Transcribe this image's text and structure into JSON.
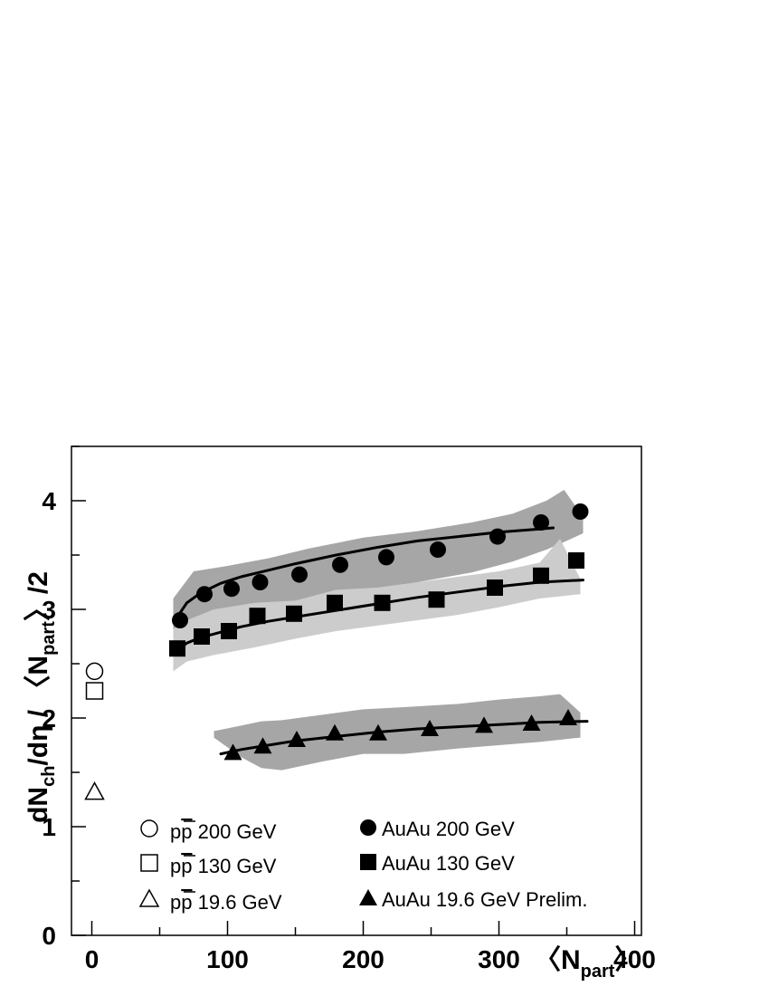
{
  "chart_data": {
    "type": "scatter",
    "ylabel": {
      "main": "dN",
      "sub1": "ch",
      "mid": "/dη / 〈N",
      "sub2": "part",
      "end": "〉/2"
    },
    "xlabel": {
      "pre": "〈N",
      "sub": "part",
      "post": "〉"
    },
    "xlim": [
      -15,
      405
    ],
    "ylim": [
      0,
      4.5
    ],
    "x_ticks": [
      {
        "v": 0,
        "label": "0"
      },
      {
        "v": 100,
        "label": "100"
      },
      {
        "v": 200,
        "label": "200"
      },
      {
        "v": 300,
        "label": "300"
      },
      {
        "v": 400,
        "label": "400"
      }
    ],
    "y_ticks": [
      {
        "v": 0,
        "label": "0"
      },
      {
        "v": 1,
        "label": "1"
      },
      {
        "v": 2,
        "label": "2"
      },
      {
        "v": 3,
        "label": "3"
      },
      {
        "v": 4,
        "label": "4"
      }
    ],
    "series": [
      {
        "name": "AuAu 200 GeV",
        "marker": "circle-filled",
        "x": [
          65,
          83,
          103,
          124,
          153,
          183,
          217,
          255,
          299,
          331,
          360
        ],
        "y": [
          2.9,
          3.14,
          3.19,
          3.25,
          3.32,
          3.41,
          3.48,
          3.55,
          3.67,
          3.8,
          3.9
        ]
      },
      {
        "name": "AuAu 130 GeV",
        "marker": "square-filled",
        "x": [
          63,
          81,
          101,
          122,
          149,
          179,
          214,
          254,
          297,
          331,
          357
        ],
        "y": [
          2.64,
          2.75,
          2.8,
          2.94,
          2.96,
          3.06,
          3.06,
          3.09,
          3.2,
          3.31,
          3.45
        ]
      },
      {
        "name": "AuAu 19.6 GeV Prelim.",
        "marker": "triangle-filled",
        "x": [
          104,
          126,
          151,
          179,
          211,
          249,
          289,
          324,
          351
        ],
        "y": [
          1.68,
          1.74,
          1.8,
          1.86,
          1.86,
          1.9,
          1.93,
          1.95,
          2.0
        ]
      },
      {
        "name": "pp̄ 200 GeV",
        "marker": "circle-open",
        "x": [
          2
        ],
        "y": [
          2.43
        ]
      },
      {
        "name": "pp̄ 130 GeV",
        "marker": "square-open",
        "x": [
          2
        ],
        "y": [
          2.25
        ]
      },
      {
        "name": "pp̄ 19.6 GeV",
        "marker": "triangle-open",
        "x": [
          2
        ],
        "y": [
          1.32
        ]
      }
    ],
    "curves": [
      {
        "for": "AuAu 200 GeV",
        "x": [
          63,
          70,
          80,
          95,
          110,
          130,
          150,
          180,
          210,
          240,
          270,
          300,
          330,
          340
        ],
        "y": [
          2.93,
          3.06,
          3.15,
          3.24,
          3.3,
          3.36,
          3.42,
          3.5,
          3.57,
          3.63,
          3.67,
          3.71,
          3.74,
          3.75
        ]
      },
      {
        "for": "AuAu 130 GeV",
        "x": [
          63,
          70,
          80,
          95,
          110,
          130,
          150,
          180,
          210,
          240,
          270,
          300,
          330,
          362
        ],
        "y": [
          2.62,
          2.69,
          2.74,
          2.79,
          2.84,
          2.89,
          2.93,
          2.99,
          3.05,
          3.11,
          3.16,
          3.21,
          3.25,
          3.27
        ]
      },
      {
        "for": "AuAu 19.6 GeV Prelim.",
        "x": [
          95,
          110,
          130,
          150,
          180,
          210,
          240,
          270,
          300,
          330,
          365
        ],
        "y": [
          1.67,
          1.71,
          1.75,
          1.79,
          1.83,
          1.87,
          1.9,
          1.92,
          1.94,
          1.96,
          1.97
        ]
      }
    ],
    "bands": [
      {
        "for": "AuAu 200 GeV",
        "color": "#a6a6a6",
        "x": [
          60,
          75,
          100,
          130,
          160,
          200,
          240,
          280,
          310,
          335,
          348,
          362
        ],
        "lower": [
          2.78,
          2.9,
          2.95,
          3.02,
          3.08,
          3.16,
          3.25,
          3.34,
          3.44,
          3.55,
          3.62,
          3.7
        ],
        "upper": [
          3.1,
          3.35,
          3.4,
          3.47,
          3.56,
          3.66,
          3.72,
          3.8,
          3.88,
          4.0,
          4.1,
          3.85
        ]
      },
      {
        "for": "AuAu 130 GeV",
        "color": "#cccccc",
        "x": [
          60,
          70,
          90,
          120,
          150,
          180,
          210,
          240,
          270,
          300,
          330,
          345,
          360
        ],
        "lower": [
          2.43,
          2.52,
          2.58,
          2.65,
          2.73,
          2.8,
          2.85,
          2.9,
          2.95,
          3.02,
          3.1,
          3.12,
          3.14
        ],
        "upper": [
          2.82,
          2.9,
          3.0,
          3.06,
          3.08,
          3.18,
          3.2,
          3.25,
          3.3,
          3.35,
          3.43,
          3.65,
          3.28
        ]
      },
      {
        "for": "AuAu 19.6 GeV Prelim.",
        "color": "#a6a6a6",
        "x": [
          90,
          110,
          125,
          140,
          170,
          200,
          230,
          270,
          300,
          330,
          345,
          360
        ],
        "lower": [
          1.82,
          1.64,
          1.54,
          1.52,
          1.6,
          1.67,
          1.67,
          1.72,
          1.75,
          1.78,
          1.8,
          1.82
        ],
        "upper": [
          1.88,
          1.93,
          1.97,
          1.98,
          2.03,
          2.08,
          2.1,
          2.13,
          2.17,
          2.2,
          2.22,
          2.05
        ]
      }
    ],
    "legend": {
      "placement": "bottom",
      "left": [
        {
          "marker": "circle-open",
          "pre": "p",
          "bar": "p",
          "post": " 200 GeV"
        },
        {
          "marker": "square-open",
          "pre": "p",
          "bar": "p",
          "post": " 130 GeV"
        },
        {
          "marker": "triangle-open",
          "pre": "p",
          "bar": "p",
          "post": " 19.6 GeV"
        }
      ],
      "right": [
        {
          "marker": "circle-filled",
          "text": "AuAu 200 GeV"
        },
        {
          "marker": "square-filled",
          "text": "AuAu 130 GeV"
        },
        {
          "marker": "triangle-filled",
          "text": "AuAu 19.6 GeV Prelim."
        }
      ]
    },
    "grid": false
  }
}
